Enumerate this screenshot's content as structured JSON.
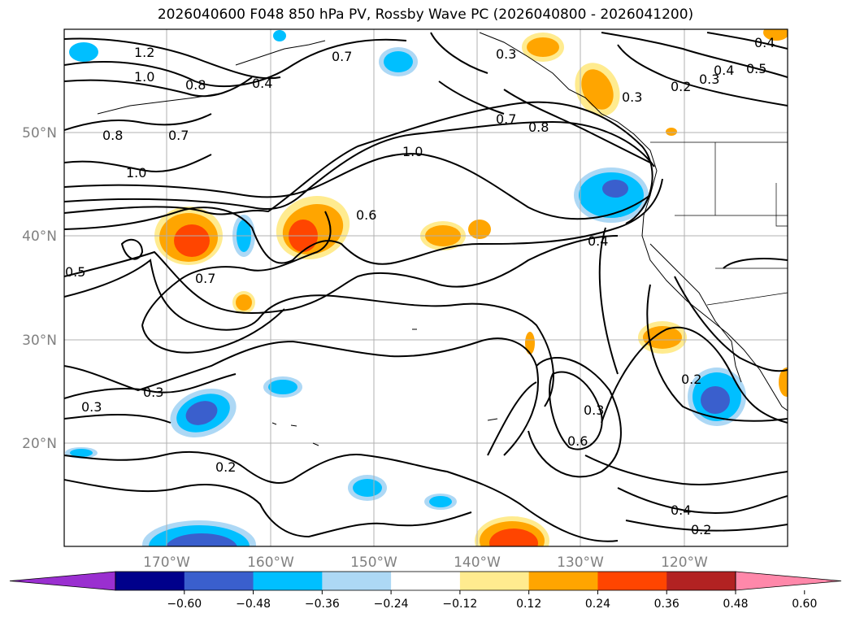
{
  "title": "2026040600 F048 850 hPa PV, Rossby Wave PC (2026040800 - 2026041200)",
  "lat_labels": [
    "50°N",
    "40°N",
    "30°N",
    "20°N"
  ],
  "lon_labels": [
    "170°W",
    "160°W",
    "150°W",
    "140°W",
    "130°W",
    "120°W"
  ],
  "colorbar": {
    "colors": [
      "#9a2fd0",
      "#00008b",
      "#3a5fcd",
      "#00bfff",
      "#add8f5",
      "#ffffff",
      "#ffeb8f",
      "#ffa500",
      "#ff4500",
      "#b22222",
      "#ff88aa"
    ],
    "tick_labels": [
      "−0.60",
      "−0.48",
      "−0.36",
      "−0.24",
      "−0.12",
      "0.12",
      "0.24",
      "0.36",
      "0.48",
      "0.60"
    ]
  },
  "contour_labels": [
    "1.2",
    "1.0",
    "0.8",
    "0.4",
    "0.7",
    "0.8",
    "0.7",
    "1.0",
    "1.0",
    "0.5",
    "0.6",
    "0.7",
    "0.3",
    "0.3",
    "0.2",
    "0.4",
    "0.3",
    "0.6",
    "0.2",
    "0.4",
    "0.2",
    "0.3",
    "0.7",
    "0.8",
    "0.3",
    "0.2",
    "0.3",
    "0.4",
    "0.5",
    "0.4"
  ]
}
